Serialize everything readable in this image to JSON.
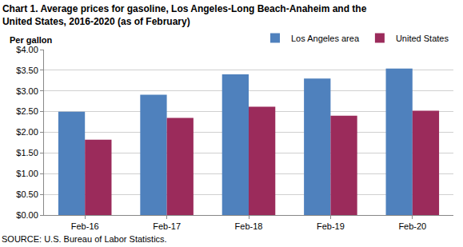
{
  "chart_data": {
    "type": "bar",
    "title": [
      "Chart 1. Average prices for gasoline, Los Angeles-Long Beach-Anaheim and the",
      "United States, 2016-2020 (as of February)"
    ],
    "y_label": "Per gallon",
    "source": "SOURCE: U.S. Bureau of Labor Statistics.",
    "categories": [
      "Feb-16",
      "Feb-17",
      "Feb-18",
      "Feb-19",
      "Feb-20"
    ],
    "series": [
      {
        "name": "Los Angeles area",
        "color": "#4f81bd",
        "values": [
          2.5,
          2.91,
          3.4,
          3.3,
          3.54
        ]
      },
      {
        "name": "United States",
        "color": "#9b2b5b",
        "values": [
          1.82,
          2.35,
          2.62,
          2.4,
          2.52
        ]
      }
    ],
    "ylim": [
      0,
      4
    ],
    "yticks": [
      {
        "value": 0,
        "label": "$0.00"
      },
      {
        "value": 0.5,
        "label": "$0.50"
      },
      {
        "value": 1,
        "label": "$1.00"
      },
      {
        "value": 1.5,
        "label": "$1.50"
      },
      {
        "value": 2,
        "label": "$2.00"
      },
      {
        "value": 2.5,
        "label": "$2.50"
      },
      {
        "value": 3,
        "label": "$3.00"
      },
      {
        "value": 3.5,
        "label": "$3.50"
      },
      {
        "value": 4,
        "label": "$4.00"
      }
    ],
    "grid": true,
    "legend": "top-right"
  }
}
